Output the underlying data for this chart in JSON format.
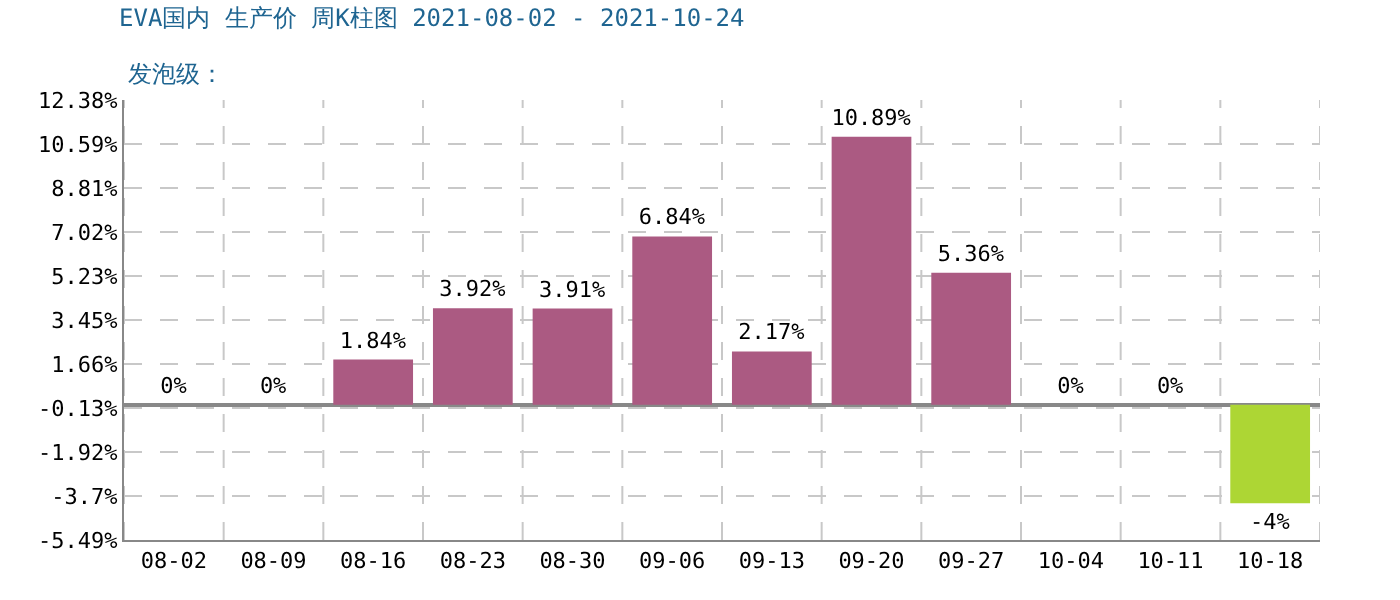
{
  "chart_data": {
    "type": "bar",
    "title": "EVA国内 生产价 周K柱图 2021-08-02 - 2021-10-24",
    "subtitle": "发泡级：",
    "categories": [
      "08-02",
      "08-09",
      "08-16",
      "08-23",
      "08-30",
      "09-06",
      "09-13",
      "09-20",
      "09-27",
      "10-04",
      "10-11",
      "10-18"
    ],
    "values": [
      0,
      0,
      1.84,
      3.92,
      3.91,
      6.84,
      2.17,
      10.89,
      5.36,
      0,
      0,
      -4
    ],
    "colors": [
      "#ab5a82",
      "#ab5a82",
      "#ab5a82",
      "#ab5a82",
      "#ab5a82",
      "#ab5a82",
      "#ab5a82",
      "#ab5a82",
      "#ab5a82",
      "#ab5a82",
      "#ab5a82",
      "#add634"
    ],
    "value_labels": [
      "0%",
      "0%",
      "1.84%",
      "3.92%",
      "3.91%",
      "6.84%",
      "2.17%",
      "10.89%",
      "5.36%",
      "0%",
      "0%",
      "-4%"
    ],
    "ylim": [
      -5.49,
      12.38
    ],
    "yticks": [
      {
        "value": -5.49,
        "label": "-5.49%"
      },
      {
        "value": -3.7,
        "label": "-3.7%"
      },
      {
        "value": -1.92,
        "label": "-1.92%"
      },
      {
        "value": -0.13,
        "label": "-0.13%"
      },
      {
        "value": 1.66,
        "label": "1.66%"
      },
      {
        "value": 3.45,
        "label": "3.45%"
      },
      {
        "value": 5.23,
        "label": "5.23%"
      },
      {
        "value": 7.02,
        "label": "7.02%"
      },
      {
        "value": 8.81,
        "label": "8.81%"
      },
      {
        "value": 10.59,
        "label": "10.59%"
      },
      {
        "value": 12.38,
        "label": "12.38%"
      }
    ],
    "grid": true
  }
}
